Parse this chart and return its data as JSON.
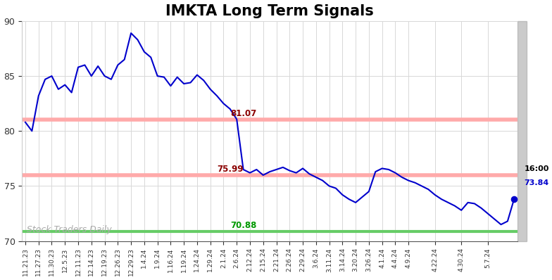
{
  "title": "IMKTA Long Term Signals",
  "title_fontsize": 15,
  "title_fontweight": "bold",
  "x_labels": [
    "11.21.23",
    "11.27.23",
    "11.30.23",
    "12.5.23",
    "12.11.23",
    "12.14.23",
    "12.19.23",
    "12.26.23",
    "12.29.23",
    "1.4.24",
    "1.9.24",
    "1.16.24",
    "1.19.24",
    "1.24.24",
    "1.29.24",
    "2.1.24",
    "2.6.24",
    "2.12.24",
    "2.15.24",
    "2.21.24",
    "2.26.24",
    "2.29.24",
    "3.6.24",
    "3.11.24",
    "3.14.24",
    "3.20.24",
    "3.26.24",
    "4.1.24",
    "4.4.24",
    "4.9.24",
    "4.22.24",
    "4.30.24",
    "5.7.24"
  ],
  "y_values": [
    80.8,
    80.0,
    83.2,
    84.7,
    85.0,
    83.8,
    84.2,
    83.5,
    85.8,
    86.0,
    85.0,
    85.9,
    85.0,
    84.7,
    86.0,
    86.5,
    88.9,
    88.3,
    87.2,
    86.7,
    85.0,
    84.9,
    84.1,
    84.9,
    84.3,
    84.4,
    85.1,
    84.6,
    83.8,
    83.2,
    82.5,
    82.0,
    81.07,
    76.5,
    76.2,
    76.5,
    75.99,
    76.3,
    76.5,
    76.7,
    76.4,
    76.2,
    76.6,
    76.1,
    75.8,
    75.5,
    75.0,
    74.8,
    74.2,
    73.8,
    73.5,
    74.0,
    74.5,
    76.3,
    76.6,
    76.5,
    76.2,
    75.8,
    75.5,
    75.3,
    75.0,
    74.7,
    74.2,
    73.8,
    73.5,
    73.2,
    72.8,
    73.5,
    73.4,
    73.0,
    72.5,
    72.0,
    71.5,
    71.8,
    73.84
  ],
  "x_tick_indices": [
    0,
    2,
    4,
    6,
    8,
    10,
    12,
    14,
    16,
    18,
    20,
    22,
    24,
    26,
    28,
    30,
    32,
    34,
    36,
    38,
    40,
    42,
    44,
    46,
    48,
    50,
    52,
    54,
    56,
    58,
    62,
    66,
    70
  ],
  "line_color": "#0000cc",
  "line_width": 1.5,
  "hline1_y": 81.07,
  "hline1_color": "#ffaaaa",
  "hline2_y": 75.99,
  "hline2_color": "#ffaaaa",
  "hline3_y": 70.88,
  "hline3_color": "#66cc66",
  "ann1_xi": 32,
  "ann1_text": "81.07",
  "ann1_color": "#8b0000",
  "ann2_xi": 36,
  "ann2_text": "75.99",
  "ann2_color": "#8b0000",
  "ann3_xi": 36,
  "ann3_text": "70.88",
  "ann3_color": "#009900",
  "last_dot_color": "#0000cc",
  "watermark": "Stock Traders Daily",
  "watermark_color": "#aaaaaa",
  "ylim": [
    70,
    90
  ],
  "yticks": [
    70,
    75,
    80,
    85,
    90
  ],
  "background_color": "#ffffff",
  "grid_color": "#d8d8d8",
  "right_bar_color": "#999999",
  "right_bar_width": 10
}
